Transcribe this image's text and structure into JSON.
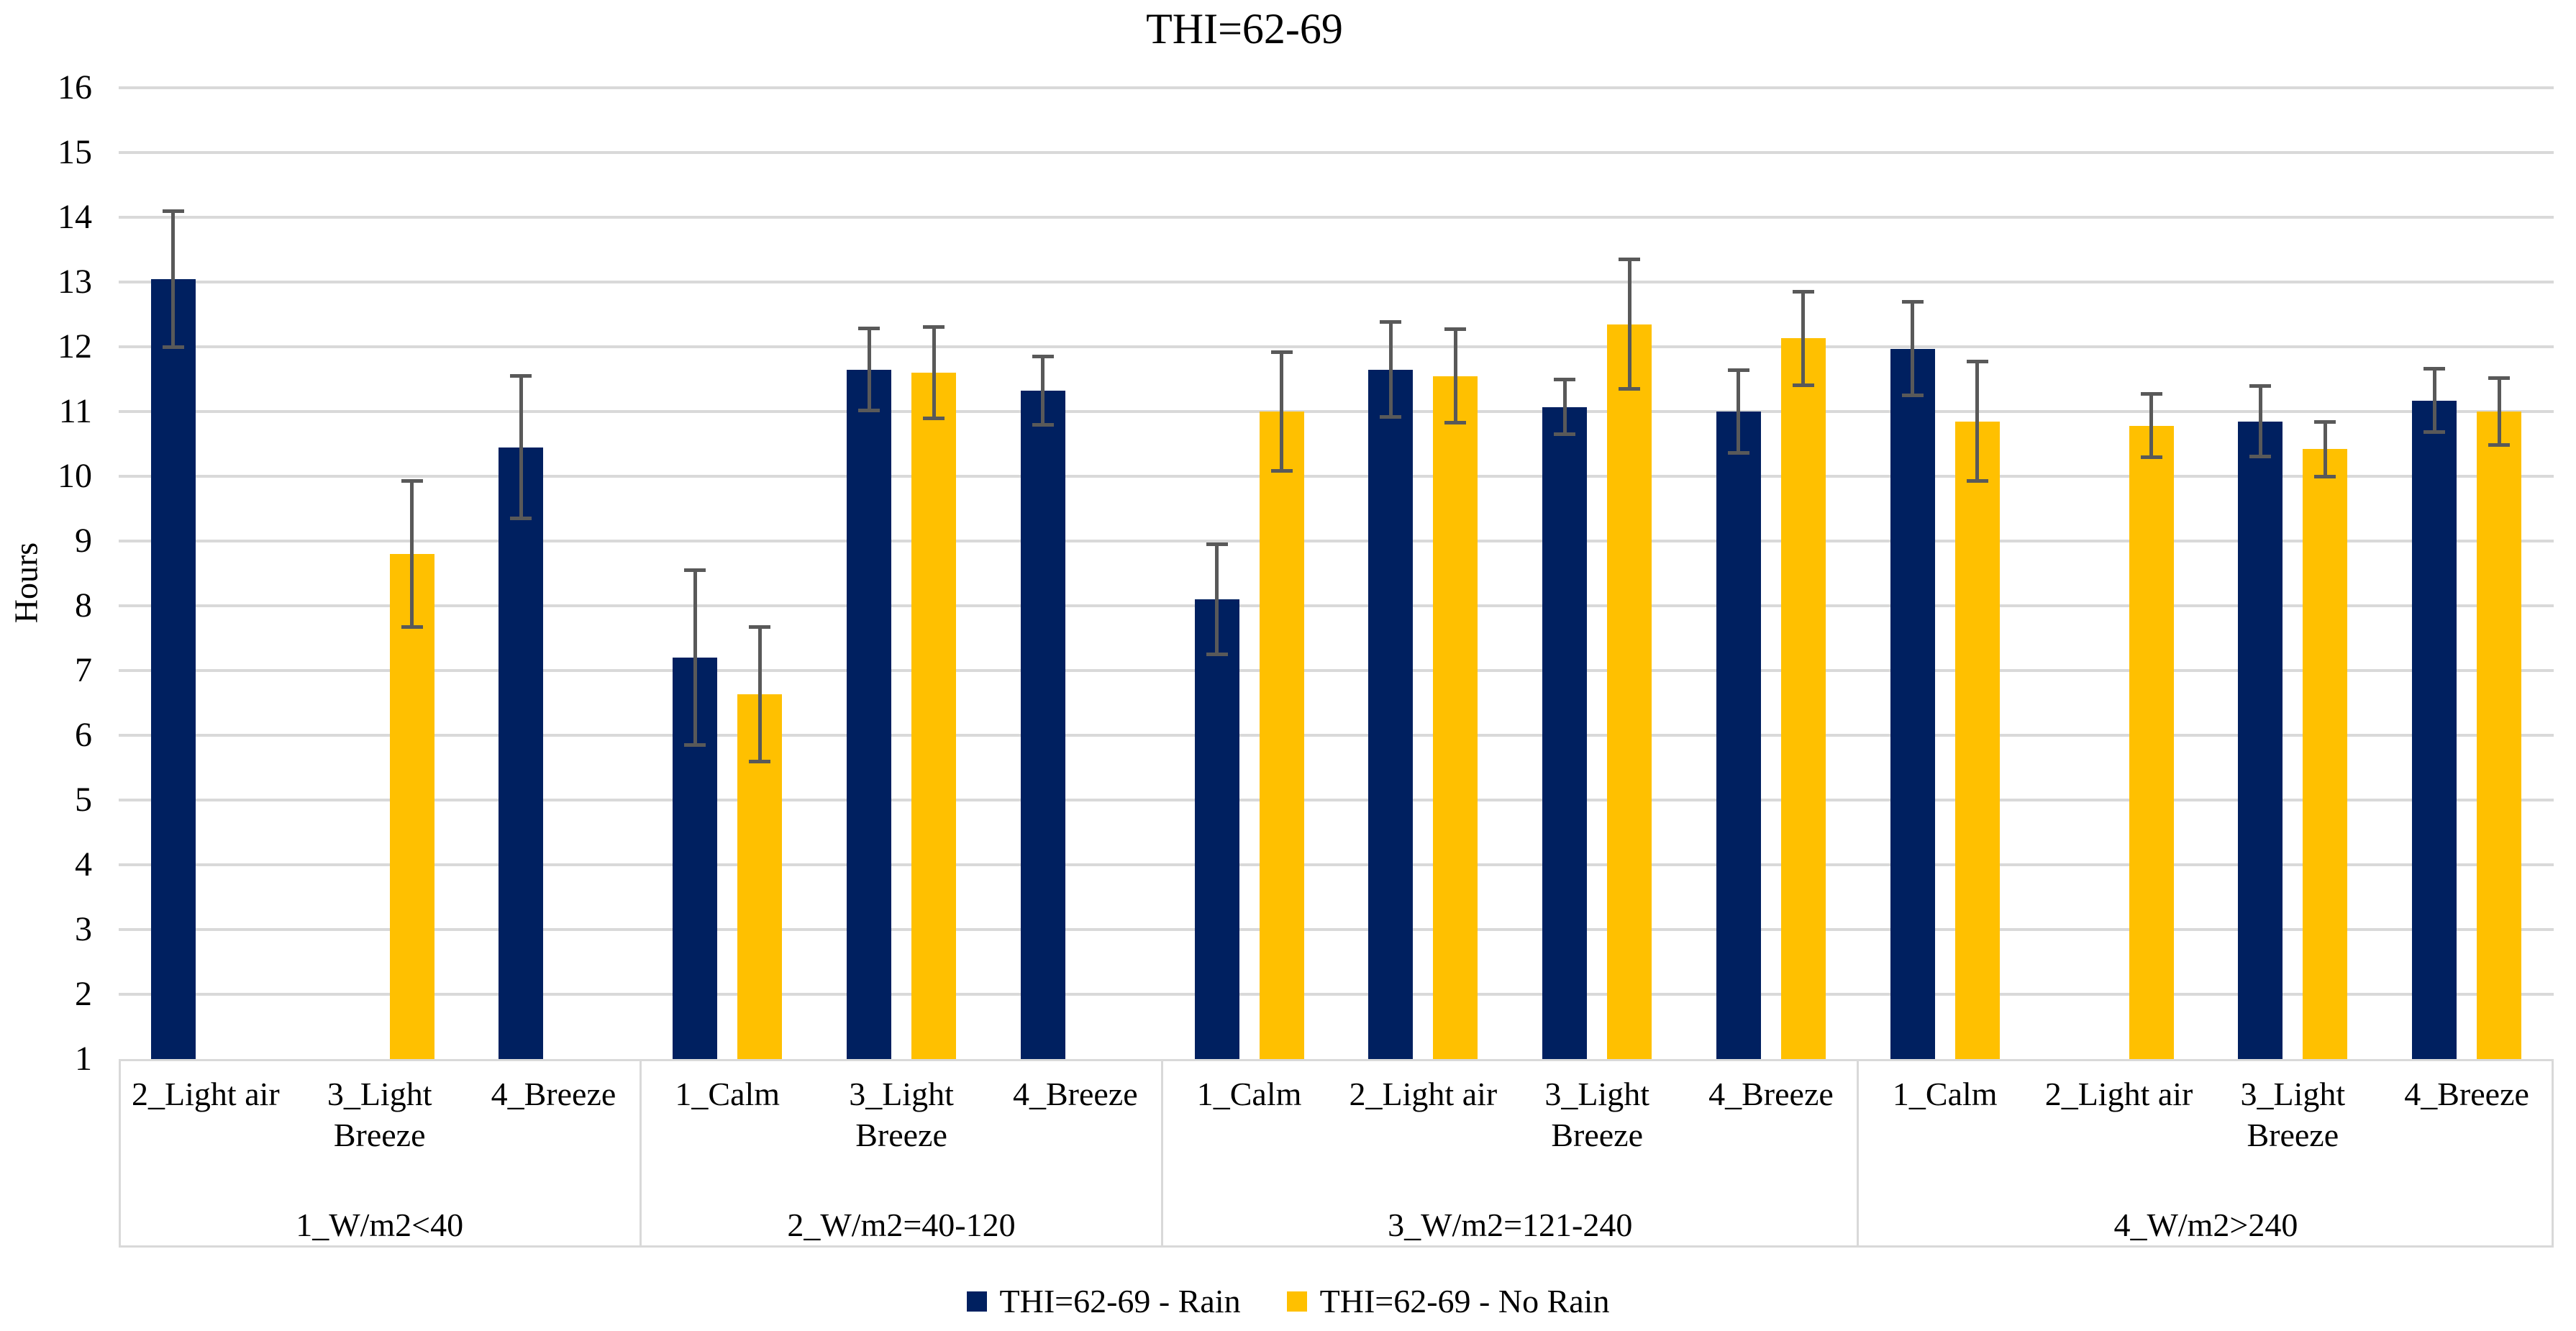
{
  "chart_data": {
    "type": "bar",
    "title": "THI=62-69",
    "ylabel": "Hours",
    "xlabel": "",
    "ylim": [
      1,
      16
    ],
    "yticks": [
      16,
      15,
      14,
      13,
      12,
      11,
      10,
      9,
      8,
      7,
      6,
      5,
      4,
      3,
      2,
      1
    ],
    "grid": true,
    "bar_baseline": 1,
    "legend_position": "bottom",
    "gridline_color": "#D9D9D9",
    "error_bar_color": "#595959",
    "series": [
      {
        "name": "THI=62-69 - Rain",
        "color": "#002060"
      },
      {
        "name": "THI=62-69 - No Rain",
        "color": "#FFC000"
      }
    ],
    "groups": [
      {
        "label": "1_W/m2<40",
        "categories": [
          {
            "label": "2_Light air",
            "label_lines": [
              "2_Light air"
            ],
            "rain": {
              "value": 13.05,
              "err": 1.05
            },
            "no_rain": null
          },
          {
            "label": "3_Light Breeze",
            "label_lines": [
              "3_Light",
              "Breeze"
            ],
            "rain": null,
            "no_rain": {
              "value": 8.8,
              "err": 1.13
            }
          },
          {
            "label": "4_Breeze",
            "label_lines": [
              "4_Breeze"
            ],
            "rain": {
              "value": 10.45,
              "err": 1.1
            },
            "no_rain": null
          }
        ]
      },
      {
        "label": "2_W/m2=40-120",
        "categories": [
          {
            "label": "1_Calm",
            "label_lines": [
              "1_Calm"
            ],
            "rain": {
              "value": 7.2,
              "err": 1.35
            },
            "no_rain": {
              "value": 6.63,
              "err": 1.04
            }
          },
          {
            "label": "3_Light Breeze",
            "label_lines": [
              "3_Light",
              "Breeze"
            ],
            "rain": {
              "value": 11.65,
              "err": 0.63
            },
            "no_rain": {
              "value": 11.6,
              "err": 0.71
            }
          },
          {
            "label": "4_Breeze",
            "label_lines": [
              "4_Breeze"
            ],
            "rain": {
              "value": 11.32,
              "err": 0.53
            },
            "no_rain": null
          }
        ]
      },
      {
        "label": "3_W/m2=121-240",
        "categories": [
          {
            "label": "1_Calm",
            "label_lines": [
              "1_Calm"
            ],
            "rain": {
              "value": 8.1,
              "err": 0.85
            },
            "no_rain": {
              "value": 11.0,
              "err": 0.92
            }
          },
          {
            "label": "2_Light air",
            "label_lines": [
              "2_Light air"
            ],
            "rain": {
              "value": 11.65,
              "err": 0.73
            },
            "no_rain": {
              "value": 11.55,
              "err": 0.72
            }
          },
          {
            "label": "3_Light Breeze",
            "label_lines": [
              "3_Light",
              "Breeze"
            ],
            "rain": {
              "value": 11.07,
              "err": 0.42
            },
            "no_rain": {
              "value": 12.35,
              "err": 1.0
            }
          },
          {
            "label": "4_Breeze",
            "label_lines": [
              "4_Breeze"
            ],
            "rain": {
              "value": 11.0,
              "err": 0.64
            },
            "no_rain": {
              "value": 12.13,
              "err": 0.72
            }
          }
        ]
      },
      {
        "label": "4_W/m2>240",
        "categories": [
          {
            "label": "1_Calm",
            "label_lines": [
              "1_Calm"
            ],
            "rain": {
              "value": 11.97,
              "err": 0.72
            },
            "no_rain": {
              "value": 10.85,
              "err": 0.92
            }
          },
          {
            "label": "2_Light air",
            "label_lines": [
              "2_Light air"
            ],
            "rain": null,
            "no_rain": {
              "value": 10.78,
              "err": 0.49
            }
          },
          {
            "label": "3_Light Breeze",
            "label_lines": [
              "3_Light",
              "Breeze"
            ],
            "rain": {
              "value": 10.85,
              "err": 0.54
            },
            "no_rain": {
              "value": 10.42,
              "err": 0.42
            }
          },
          {
            "label": "4_Breeze",
            "label_lines": [
              "4_Breeze"
            ],
            "rain": {
              "value": 11.17,
              "err": 0.49
            },
            "no_rain": {
              "value": 11.0,
              "err": 0.52
            }
          }
        ]
      }
    ]
  }
}
